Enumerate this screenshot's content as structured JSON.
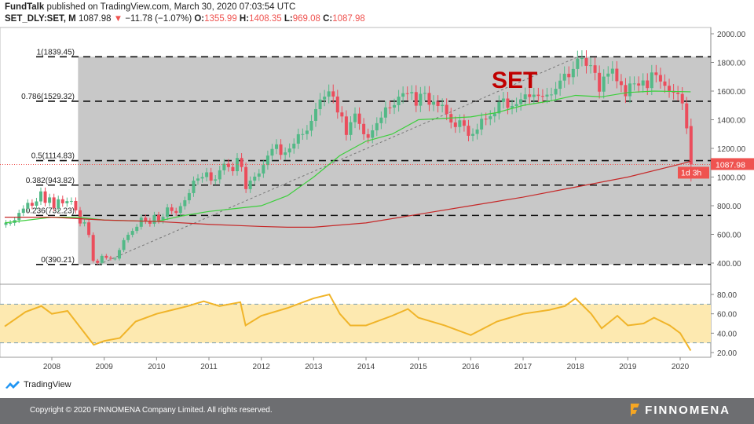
{
  "header": {
    "publisher": "FundTalk",
    "published_text": "published on TradingView.com, March 30, 2020 07:03:54 UTC",
    "symbol": "SET_DLY:SET, M",
    "last": "1087.98",
    "change": "−11.78 (−1.07%)",
    "o_label": "O:",
    "o": "1355.99",
    "h_label": "H:",
    "h": "1408.35",
    "l_label": "L:",
    "l": "969.08",
    "c_label": "C:",
    "c": "1087.98"
  },
  "colors": {
    "up": "#53b987",
    "down": "#eb4d5c",
    "ma_fast": "#3ccf3c",
    "ma_slow": "#c62828",
    "rsi": "#f0b429",
    "title": "#c00000"
  },
  "chart_data": {
    "type": "candlestick",
    "title": "SET",
    "start": "2007-02",
    "interval": "monthly",
    "closes": [
      680,
      680,
      700,
      750,
      780,
      820,
      800,
      830,
      900,
      820,
      858,
      784,
      845,
      817,
      832,
      833,
      768,
      676,
      684,
      596,
      416,
      401,
      450,
      437,
      431,
      431,
      491,
      560,
      597,
      624,
      653,
      717,
      694,
      674,
      735,
      696,
      722,
      788,
      763,
      750,
      797,
      838,
      888,
      975,
      990,
      1000,
      1033,
      975,
      984,
      1047,
      1093,
      1070,
      1041,
      1133,
      1070,
      916,
      975,
      1003,
      1025,
      1084,
      1150,
      1196,
      1228,
      1155,
      1172,
      1199,
      1233,
      1299,
      1300,
      1324,
      1392,
      1474,
      1541,
      1561,
      1598,
      1562,
      1451,
      1423,
      1294,
      1383,
      1443,
      1371,
      1299,
      1274,
      1326,
      1376,
      1415,
      1486,
      1485,
      1502,
      1561,
      1585,
      1584,
      1593,
      1498,
      1581,
      1587,
      1505,
      1526,
      1496,
      1504,
      1440,
      1381,
      1349,
      1396,
      1358,
      1288,
      1301,
      1332,
      1407,
      1404,
      1424,
      1444,
      1524,
      1548,
      1483,
      1496,
      1509,
      1543,
      1577,
      1559,
      1575,
      1566,
      1562,
      1575,
      1576,
      1616,
      1673,
      1721,
      1697,
      1754,
      1827,
      1830,
      1776,
      1780,
      1727,
      1596,
      1701,
      1722,
      1756,
      1669,
      1642,
      1564,
      1653,
      1653,
      1639,
      1674,
      1621,
      1730,
      1712,
      1667,
      1637,
      1601,
      1589,
      1580,
      1514,
      1340,
      1088
    ],
    "last_candle": {
      "open": 1355.99,
      "high": 1408.35,
      "low": 969.08,
      "close": 1087.98
    },
    "ma_fast": [
      [
        2007.1,
        680
      ],
      [
        2008,
        720
      ],
      [
        2008.5,
        720
      ],
      [
        2009,
        700
      ],
      [
        2010,
        690
      ],
      [
        2010.5,
        730
      ],
      [
        2011,
        760
      ],
      [
        2011.5,
        780
      ],
      [
        2012,
        800
      ],
      [
        2012.5,
        870
      ],
      [
        2013,
        1000
      ],
      [
        2013.5,
        1150
      ],
      [
        2014,
        1250
      ],
      [
        2014.5,
        1300
      ],
      [
        2015,
        1400
      ],
      [
        2016,
        1420
      ],
      [
        2016.5,
        1450
      ],
      [
        2017,
        1500
      ],
      [
        2017.5,
        1530
      ],
      [
        2018,
        1570
      ],
      [
        2018.5,
        1560
      ],
      [
        2019,
        1590
      ],
      [
        2019.5,
        1600
      ],
      [
        2020.2,
        1595
      ]
    ],
    "ma_slow": [
      [
        2007.1,
        720
      ],
      [
        2008,
        720
      ],
      [
        2009,
        700
      ],
      [
        2010,
        690
      ],
      [
        2011,
        670
      ],
      [
        2012,
        655
      ],
      [
        2012.5,
        650
      ],
      [
        2013,
        650
      ],
      [
        2014,
        680
      ],
      [
        2015,
        740
      ],
      [
        2016,
        800
      ],
      [
        2017,
        860
      ],
      [
        2018,
        930
      ],
      [
        2019,
        1000
      ],
      [
        2020,
        1090
      ],
      [
        2020.2,
        1110
      ]
    ],
    "fib_levels": [
      {
        "label": "1(1839.45)",
        "value": 1839.45
      },
      {
        "label": "0.786(1529.32)",
        "value": 1529.32
      },
      {
        "label": "0.5(1114.83)",
        "value": 1114.83
      },
      {
        "label": "0.382(943.82)",
        "value": 943.82
      },
      {
        "label": "0.236(732.23)",
        "value": 732.23
      },
      {
        "label": "0(390.21)",
        "value": 390.21
      }
    ],
    "trendline": [
      [
        2008.9,
        390.21
      ],
      [
        2018.05,
        1839.45
      ]
    ],
    "price_ticks": [
      "2000.00",
      "1800.00",
      "1600.00",
      "1400.00",
      "1200.00",
      "1000.00",
      "800.00",
      "600.00",
      "400.00"
    ],
    "ylim": [
      400,
      2000
    ],
    "x_ticks": [
      "2008",
      "2009",
      "2010",
      "2011",
      "2012",
      "2013",
      "2014",
      "2015",
      "2016",
      "2017",
      "2018",
      "2019",
      "2020"
    ],
    "last_price_label": "1087.98",
    "countdown_label": "1d 3h",
    "rsi": {
      "ticks": [
        "80.00",
        "60.00",
        "40.00",
        "20.00"
      ],
      "band": [
        30,
        70
      ],
      "ylim": [
        20,
        80
      ],
      "points": [
        [
          2007.1,
          47
        ],
        [
          2007.5,
          62
        ],
        [
          2007.8,
          68
        ],
        [
          2008,
          60
        ],
        [
          2008.3,
          63
        ],
        [
          2008.6,
          42
        ],
        [
          2008.8,
          28
        ],
        [
          2009,
          32
        ],
        [
          2009.3,
          35
        ],
        [
          2009.6,
          52
        ],
        [
          2010,
          60
        ],
        [
          2010.3,
          64
        ],
        [
          2010.6,
          68
        ],
        [
          2010.9,
          73
        ],
        [
          2011.2,
          68
        ],
        [
          2011.6,
          72
        ],
        [
          2011.7,
          48
        ],
        [
          2012,
          58
        ],
        [
          2012.5,
          66
        ],
        [
          2013,
          76
        ],
        [
          2013.3,
          80
        ],
        [
          2013.5,
          60
        ],
        [
          2013.7,
          48
        ],
        [
          2014,
          48
        ],
        [
          2014.5,
          58
        ],
        [
          2014.8,
          65
        ],
        [
          2015,
          56
        ],
        [
          2015.5,
          48
        ],
        [
          2016,
          38
        ],
        [
          2016.5,
          52
        ],
        [
          2017,
          60
        ],
        [
          2017.5,
          64
        ],
        [
          2017.8,
          68
        ],
        [
          2018,
          76
        ],
        [
          2018.3,
          60
        ],
        [
          2018.5,
          45
        ],
        [
          2018.8,
          58
        ],
        [
          2019,
          48
        ],
        [
          2019.3,
          50
        ],
        [
          2019.5,
          56
        ],
        [
          2019.8,
          48
        ],
        [
          2020,
          40
        ],
        [
          2020.2,
          22
        ]
      ]
    }
  },
  "branding": {
    "tv": "TradingView",
    "copyright": "Copyright © 2020 FINNOMENA Company Limited. All rights reserved.",
    "finnomena": "FINNOMENA"
  }
}
